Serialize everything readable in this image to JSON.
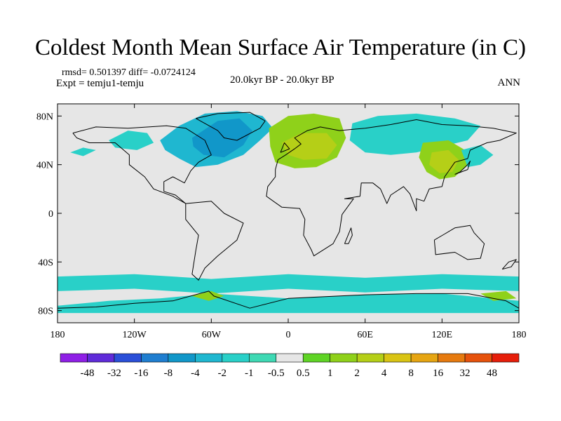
{
  "title": "Coldest Month Mean Surface Air Temperature (in C)",
  "stats": {
    "rmsd_label": "rmsd=",
    "rmsd": "0.501397",
    "diff_label": "diff=",
    "diff": "-0.0724124"
  },
  "expt": "Expt = temju1-temju",
  "period": "20.0kyr BP - 20.0kyr BP",
  "season": "ANN",
  "map": {
    "lon_range": [
      -180,
      180
    ],
    "lat_range": [
      -90,
      90
    ],
    "background_color": "#e6e6e6",
    "x_ticks": [
      {
        "lon": -180,
        "label": "180"
      },
      {
        "lon": -120,
        "label": "120W"
      },
      {
        "lon": -60,
        "label": "60W"
      },
      {
        "lon": 0,
        "label": "0"
      },
      {
        "lon": 60,
        "label": "60E"
      },
      {
        "lon": 120,
        "label": "120E"
      },
      {
        "lon": 180,
        "label": "180"
      }
    ],
    "y_ticks": [
      {
        "lat": 80,
        "label": "80N"
      },
      {
        "lat": 40,
        "label": "40N"
      },
      {
        "lat": 0,
        "label": "0"
      },
      {
        "lat": -40,
        "label": "40S"
      },
      {
        "lat": -80,
        "label": "80S"
      }
    ],
    "anomaly_regions": [
      {
        "name": "greenland-labrador",
        "color": "#1fb7d0",
        "points": [
          [
            -100,
            60
          ],
          [
            -85,
            72
          ],
          [
            -65,
            82
          ],
          [
            -40,
            84
          ],
          [
            -20,
            80
          ],
          [
            -12,
            70
          ],
          [
            -22,
            60
          ],
          [
            -35,
            48
          ],
          [
            -55,
            40
          ],
          [
            -72,
            38
          ],
          [
            -85,
            45
          ],
          [
            -96,
            52
          ]
        ]
      },
      {
        "name": "greenland-core",
        "color": "#1197c9",
        "points": [
          [
            -75,
            62
          ],
          [
            -55,
            76
          ],
          [
            -38,
            78
          ],
          [
            -28,
            68
          ],
          [
            -35,
            56
          ],
          [
            -50,
            46
          ],
          [
            -66,
            48
          ],
          [
            -74,
            55
          ]
        ]
      },
      {
        "name": "west-canada",
        "color": "#29d0c8",
        "points": [
          [
            -140,
            60
          ],
          [
            -125,
            68
          ],
          [
            -110,
            66
          ],
          [
            -105,
            58
          ],
          [
            -118,
            52
          ],
          [
            -135,
            54
          ]
        ]
      },
      {
        "name": "europe-north-atlantic",
        "color": "#8fd11a",
        "points": [
          [
            -15,
            70
          ],
          [
            0,
            80
          ],
          [
            20,
            82
          ],
          [
            40,
            78
          ],
          [
            45,
            62
          ],
          [
            38,
            46
          ],
          [
            22,
            38
          ],
          [
            5,
            37
          ],
          [
            -10,
            42
          ],
          [
            -14,
            55
          ]
        ]
      },
      {
        "name": "europe-core",
        "color": "#b5cf17",
        "points": [
          [
            -5,
            58
          ],
          [
            10,
            66
          ],
          [
            30,
            66
          ],
          [
            38,
            56
          ],
          [
            30,
            45
          ],
          [
            12,
            44
          ],
          [
            0,
            48
          ]
        ]
      },
      {
        "name": "siberia",
        "color": "#29d0c8",
        "points": [
          [
            50,
            74
          ],
          [
            70,
            80
          ],
          [
            100,
            82
          ],
          [
            130,
            78
          ],
          [
            150,
            72
          ],
          [
            140,
            60
          ],
          [
            120,
            55
          ],
          [
            100,
            50
          ],
          [
            80,
            48
          ],
          [
            60,
            50
          ],
          [
            48,
            60
          ]
        ]
      },
      {
        "name": "east-asia",
        "color": "#8fd11a",
        "points": [
          [
            105,
            58
          ],
          [
            125,
            60
          ],
          [
            138,
            52
          ],
          [
            140,
            40
          ],
          [
            130,
            30
          ],
          [
            118,
            28
          ],
          [
            108,
            34
          ],
          [
            102,
            46
          ]
        ]
      },
      {
        "name": "east-asia-core",
        "color": "#b5cf17",
        "points": [
          [
            112,
            50
          ],
          [
            125,
            52
          ],
          [
            133,
            44
          ],
          [
            128,
            34
          ],
          [
            118,
            33
          ],
          [
            110,
            40
          ]
        ]
      },
      {
        "name": "japan-pacific",
        "color": "#29d0c8",
        "points": [
          [
            135,
            52
          ],
          [
            150,
            56
          ],
          [
            160,
            48
          ],
          [
            150,
            40
          ],
          [
            140,
            38
          ]
        ]
      },
      {
        "name": "north-pacific-west",
        "color": "#29d0c8",
        "points": [
          [
            -170,
            50
          ],
          [
            -160,
            54
          ],
          [
            -150,
            52
          ],
          [
            -160,
            47
          ]
        ]
      },
      {
        "name": "southern-ocean-band",
        "color": "#29d0c8",
        "points": [
          [
            -180,
            -52
          ],
          [
            -120,
            -50
          ],
          [
            -60,
            -54
          ],
          [
            0,
            -50
          ],
          [
            60,
            -53
          ],
          [
            120,
            -50
          ],
          [
            180,
            -52
          ],
          [
            180,
            -64
          ],
          [
            120,
            -62
          ],
          [
            60,
            -65
          ],
          [
            0,
            -62
          ],
          [
            -60,
            -66
          ],
          [
            -120,
            -62
          ],
          [
            -180,
            -64
          ]
        ]
      },
      {
        "name": "antarctic-coast",
        "color": "#29d0c8",
        "points": [
          [
            -180,
            -76
          ],
          [
            -140,
            -72
          ],
          [
            -100,
            -70
          ],
          [
            -60,
            -66
          ],
          [
            0,
            -70
          ],
          [
            60,
            -67
          ],
          [
            120,
            -66
          ],
          [
            180,
            -72
          ],
          [
            180,
            -82
          ],
          [
            -180,
            -82
          ]
        ]
      },
      {
        "name": "weddell-green",
        "color": "#8fd11a",
        "points": [
          [
            -75,
            -68
          ],
          [
            -60,
            -64
          ],
          [
            -50,
            -68
          ],
          [
            -62,
            -72
          ]
        ]
      },
      {
        "name": "ross-green",
        "color": "#8fd11a",
        "points": [
          [
            150,
            -66
          ],
          [
            170,
            -64
          ],
          [
            178,
            -70
          ],
          [
            160,
            -72
          ]
        ]
      }
    ],
    "coastlines": [
      {
        "name": "north-america",
        "points": [
          [
            -168,
            66
          ],
          [
            -150,
            71
          ],
          [
            -125,
            70
          ],
          [
            -95,
            72
          ],
          [
            -80,
            70
          ],
          [
            -65,
            60
          ],
          [
            -60,
            48
          ],
          [
            -70,
            42
          ],
          [
            -76,
            35
          ],
          [
            -81,
            25
          ],
          [
            -90,
            30
          ],
          [
            -97,
            26
          ],
          [
            -97,
            18
          ],
          [
            -88,
            15
          ],
          [
            -80,
            8
          ],
          [
            -90,
            14
          ],
          [
            -105,
            20
          ],
          [
            -112,
            30
          ],
          [
            -124,
            40
          ],
          [
            -124,
            48
          ],
          [
            -135,
            58
          ],
          [
            -155,
            58
          ],
          [
            -165,
            62
          ],
          [
            -168,
            66
          ]
        ]
      },
      {
        "name": "south-america",
        "points": [
          [
            -80,
            8
          ],
          [
            -60,
            10
          ],
          [
            -50,
            0
          ],
          [
            -35,
            -8
          ],
          [
            -40,
            -22
          ],
          [
            -55,
            -35
          ],
          [
            -65,
            -45
          ],
          [
            -70,
            -55
          ],
          [
            -75,
            -50
          ],
          [
            -72,
            -30
          ],
          [
            -70,
            -18
          ],
          [
            -80,
            -5
          ],
          [
            -80,
            8
          ]
        ]
      },
      {
        "name": "greenland",
        "points": [
          [
            -72,
            78
          ],
          [
            -55,
            82
          ],
          [
            -30,
            83
          ],
          [
            -18,
            76
          ],
          [
            -22,
            70
          ],
          [
            -40,
            60
          ],
          [
            -50,
            62
          ],
          [
            -55,
            68
          ],
          [
            -72,
            78
          ]
        ]
      },
      {
        "name": "eurasia-africa",
        "points": [
          [
            -10,
            36
          ],
          [
            -8,
            44
          ],
          [
            -2,
            48
          ],
          [
            5,
            53
          ],
          [
            10,
            57
          ],
          [
            5,
            62
          ],
          [
            15,
            68
          ],
          [
            25,
            71
          ],
          [
            40,
            68
          ],
          [
            60,
            70
          ],
          [
            80,
            73
          ],
          [
            100,
            77
          ],
          [
            120,
            73
          ],
          [
            140,
            72
          ],
          [
            160,
            70
          ],
          [
            178,
            66
          ],
          [
            165,
            60
          ],
          [
            155,
            58
          ],
          [
            142,
            52
          ],
          [
            140,
            45
          ],
          [
            130,
            42
          ],
          [
            126,
            36
          ],
          [
            122,
            30
          ],
          [
            120,
            22
          ],
          [
            110,
            20
          ],
          [
            106,
            10
          ],
          [
            100,
            12
          ],
          [
            100,
            2
          ],
          [
            95,
            16
          ],
          [
            90,
            22
          ],
          [
            80,
            15
          ],
          [
            77,
            8
          ],
          [
            72,
            20
          ],
          [
            66,
            25
          ],
          [
            57,
            25
          ],
          [
            56,
            14
          ],
          [
            44,
            12
          ],
          [
            51,
            12
          ],
          [
            42,
            -1
          ],
          [
            40,
            -15
          ],
          [
            35,
            -25
          ],
          [
            20,
            -35
          ],
          [
            18,
            -30
          ],
          [
            12,
            -18
          ],
          [
            13,
            -5
          ],
          [
            9,
            4
          ],
          [
            -5,
            5
          ],
          [
            -17,
            14
          ],
          [
            -16,
            22
          ],
          [
            -10,
            30
          ],
          [
            -10,
            36
          ]
        ]
      },
      {
        "name": "australia",
        "points": [
          [
            114,
            -22
          ],
          [
            122,
            -17
          ],
          [
            130,
            -12
          ],
          [
            142,
            -10
          ],
          [
            145,
            -16
          ],
          [
            153,
            -25
          ],
          [
            150,
            -37
          ],
          [
            140,
            -38
          ],
          [
            130,
            -32
          ],
          [
            115,
            -34
          ],
          [
            114,
            -22
          ]
        ]
      },
      {
        "name": "uk",
        "points": [
          [
            -6,
            50
          ],
          [
            -3,
            58
          ],
          [
            1,
            53
          ],
          [
            -6,
            50
          ]
        ]
      },
      {
        "name": "madagascar",
        "points": [
          [
            44,
            -25
          ],
          [
            49,
            -12
          ],
          [
            50,
            -18
          ],
          [
            47,
            -25
          ],
          [
            44,
            -25
          ]
        ]
      },
      {
        "name": "japan",
        "points": [
          [
            130,
            32
          ],
          [
            140,
            36
          ],
          [
            142,
            43
          ],
          [
            140,
            40
          ],
          [
            134,
            34
          ],
          [
            130,
            32
          ]
        ]
      },
      {
        "name": "new-zealand",
        "points": [
          [
            167,
            -46
          ],
          [
            172,
            -40
          ],
          [
            178,
            -38
          ],
          [
            174,
            -44
          ],
          [
            167,
            -46
          ]
        ]
      },
      {
        "name": "antarctica",
        "points": [
          [
            -180,
            -78
          ],
          [
            -150,
            -77
          ],
          [
            -120,
            -74
          ],
          [
            -90,
            -72
          ],
          [
            -62,
            -64
          ],
          [
            -58,
            -68
          ],
          [
            -30,
            -78
          ],
          [
            0,
            -70
          ],
          [
            60,
            -67
          ],
          [
            100,
            -66
          ],
          [
            140,
            -66
          ],
          [
            170,
            -72
          ],
          [
            180,
            -78
          ]
        ]
      }
    ]
  },
  "legend": {
    "colors": [
      "#8f1fe6",
      "#5f2bd9",
      "#2a4fd8",
      "#1f7ed0",
      "#1197c9",
      "#1fb7d0",
      "#29d0c8",
      "#3ed9b4",
      "#e6e6e6",
      "#5fd425",
      "#8fd11a",
      "#b5cf17",
      "#d9c414",
      "#e6a512",
      "#e67a0f",
      "#e6520c",
      "#e61e0a"
    ],
    "labels": [
      "-48",
      "-32",
      "-16",
      "-8",
      "-4",
      "-2",
      "-1",
      "-0.5",
      "0.5",
      "1",
      "2",
      "4",
      "8",
      "16",
      "32",
      "48"
    ]
  }
}
